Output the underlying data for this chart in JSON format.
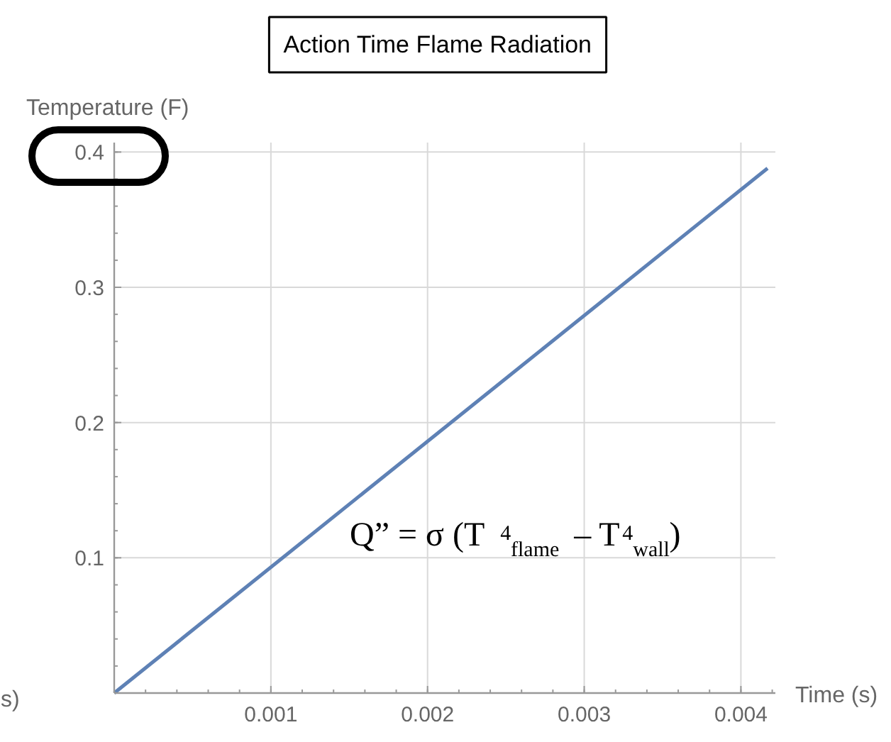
{
  "chart_data": {
    "type": "line",
    "title": "Action Time Flame Radiation",
    "xlabel": "Time (s)",
    "ylabel": "Temperature (F)",
    "x": [
      0,
      0.00417
    ],
    "series": [
      {
        "color": "#5e81b5",
        "values": [
          0,
          0.388
        ]
      }
    ],
    "xlim": [
      0,
      0.00422
    ],
    "ylim": [
      0,
      0.407
    ],
    "xticks": [
      0.001,
      0.002,
      0.003,
      0.004
    ],
    "yticks": [
      0.1,
      0.2,
      0.3,
      0.4
    ],
    "grid": true,
    "marker": "none",
    "line_style": "solid",
    "annotations": [
      "Q” = σ (T$^{4}$$_{flame}$ – T$^{4}$$_{wall}$)",
      "s)"
    ]
  }
}
